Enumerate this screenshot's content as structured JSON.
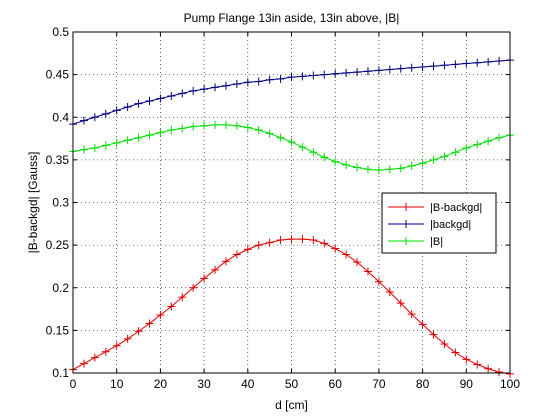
{
  "chart_data": {
    "type": "line",
    "title": "Pump Flange 13in aside, 13in above, |B|",
    "xlabel": "d [cm]",
    "ylabel": "|B-backgd| [Gauss]",
    "xlim": [
      0,
      100
    ],
    "ylim": [
      0.1,
      0.5
    ],
    "xticks": [
      "0",
      "10",
      "20",
      "30",
      "40",
      "50",
      "60",
      "70",
      "80",
      "90",
      "100"
    ],
    "yticks": [
      "0.1",
      "0.15",
      "0.2",
      "0.25",
      "0.3",
      "0.35",
      "0.4",
      "0.45",
      "0.5"
    ],
    "grid": true,
    "legend_position": "right-middle",
    "x": [
      0,
      2.5,
      5,
      7.5,
      10,
      12.5,
      15,
      17.5,
      20,
      22.5,
      25,
      27.5,
      30,
      32.5,
      35,
      37.5,
      40,
      42.5,
      45,
      47.5,
      50,
      52.5,
      55,
      57.5,
      60,
      62.5,
      65,
      67.5,
      70,
      72.5,
      75,
      77.5,
      80,
      82.5,
      85,
      87.5,
      90,
      92.5,
      95,
      97.5,
      100
    ],
    "series": [
      {
        "name": "|B-backgd|",
        "color": "#e00000",
        "marker": "+",
        "values": [
          0.104,
          0.111,
          0.118,
          0.125,
          0.132,
          0.14,
          0.149,
          0.158,
          0.168,
          0.178,
          0.189,
          0.2,
          0.211,
          0.221,
          0.231,
          0.239,
          0.245,
          0.25,
          0.253,
          0.256,
          0.257,
          0.257,
          0.256,
          0.252,
          0.246,
          0.239,
          0.23,
          0.219,
          0.207,
          0.195,
          0.182,
          0.169,
          0.157,
          0.145,
          0.134,
          0.124,
          0.116,
          0.11,
          0.105,
          0.101,
          0.099
        ]
      },
      {
        "name": "|backgd|",
        "color": "#000080",
        "marker": "+",
        "values": [
          0.392,
          0.396,
          0.4,
          0.404,
          0.408,
          0.412,
          0.416,
          0.419,
          0.422,
          0.425,
          0.428,
          0.431,
          0.433,
          0.435,
          0.437,
          0.439,
          0.441,
          0.442,
          0.444,
          0.445,
          0.447,
          0.448,
          0.449,
          0.45,
          0.451,
          0.452,
          0.453,
          0.454,
          0.455,
          0.456,
          0.457,
          0.458,
          0.459,
          0.46,
          0.461,
          0.462,
          0.463,
          0.464,
          0.465,
          0.466,
          0.467
        ]
      },
      {
        "name": "|B|",
        "color": "#00dd00",
        "marker": "+",
        "values": [
          0.36,
          0.362,
          0.364,
          0.367,
          0.37,
          0.373,
          0.376,
          0.379,
          0.382,
          0.385,
          0.387,
          0.389,
          0.39,
          0.391,
          0.391,
          0.39,
          0.388,
          0.385,
          0.381,
          0.376,
          0.371,
          0.365,
          0.359,
          0.353,
          0.348,
          0.344,
          0.341,
          0.339,
          0.338,
          0.339,
          0.34,
          0.343,
          0.346,
          0.35,
          0.354,
          0.359,
          0.364,
          0.368,
          0.372,
          0.376,
          0.379
        ]
      }
    ]
  }
}
